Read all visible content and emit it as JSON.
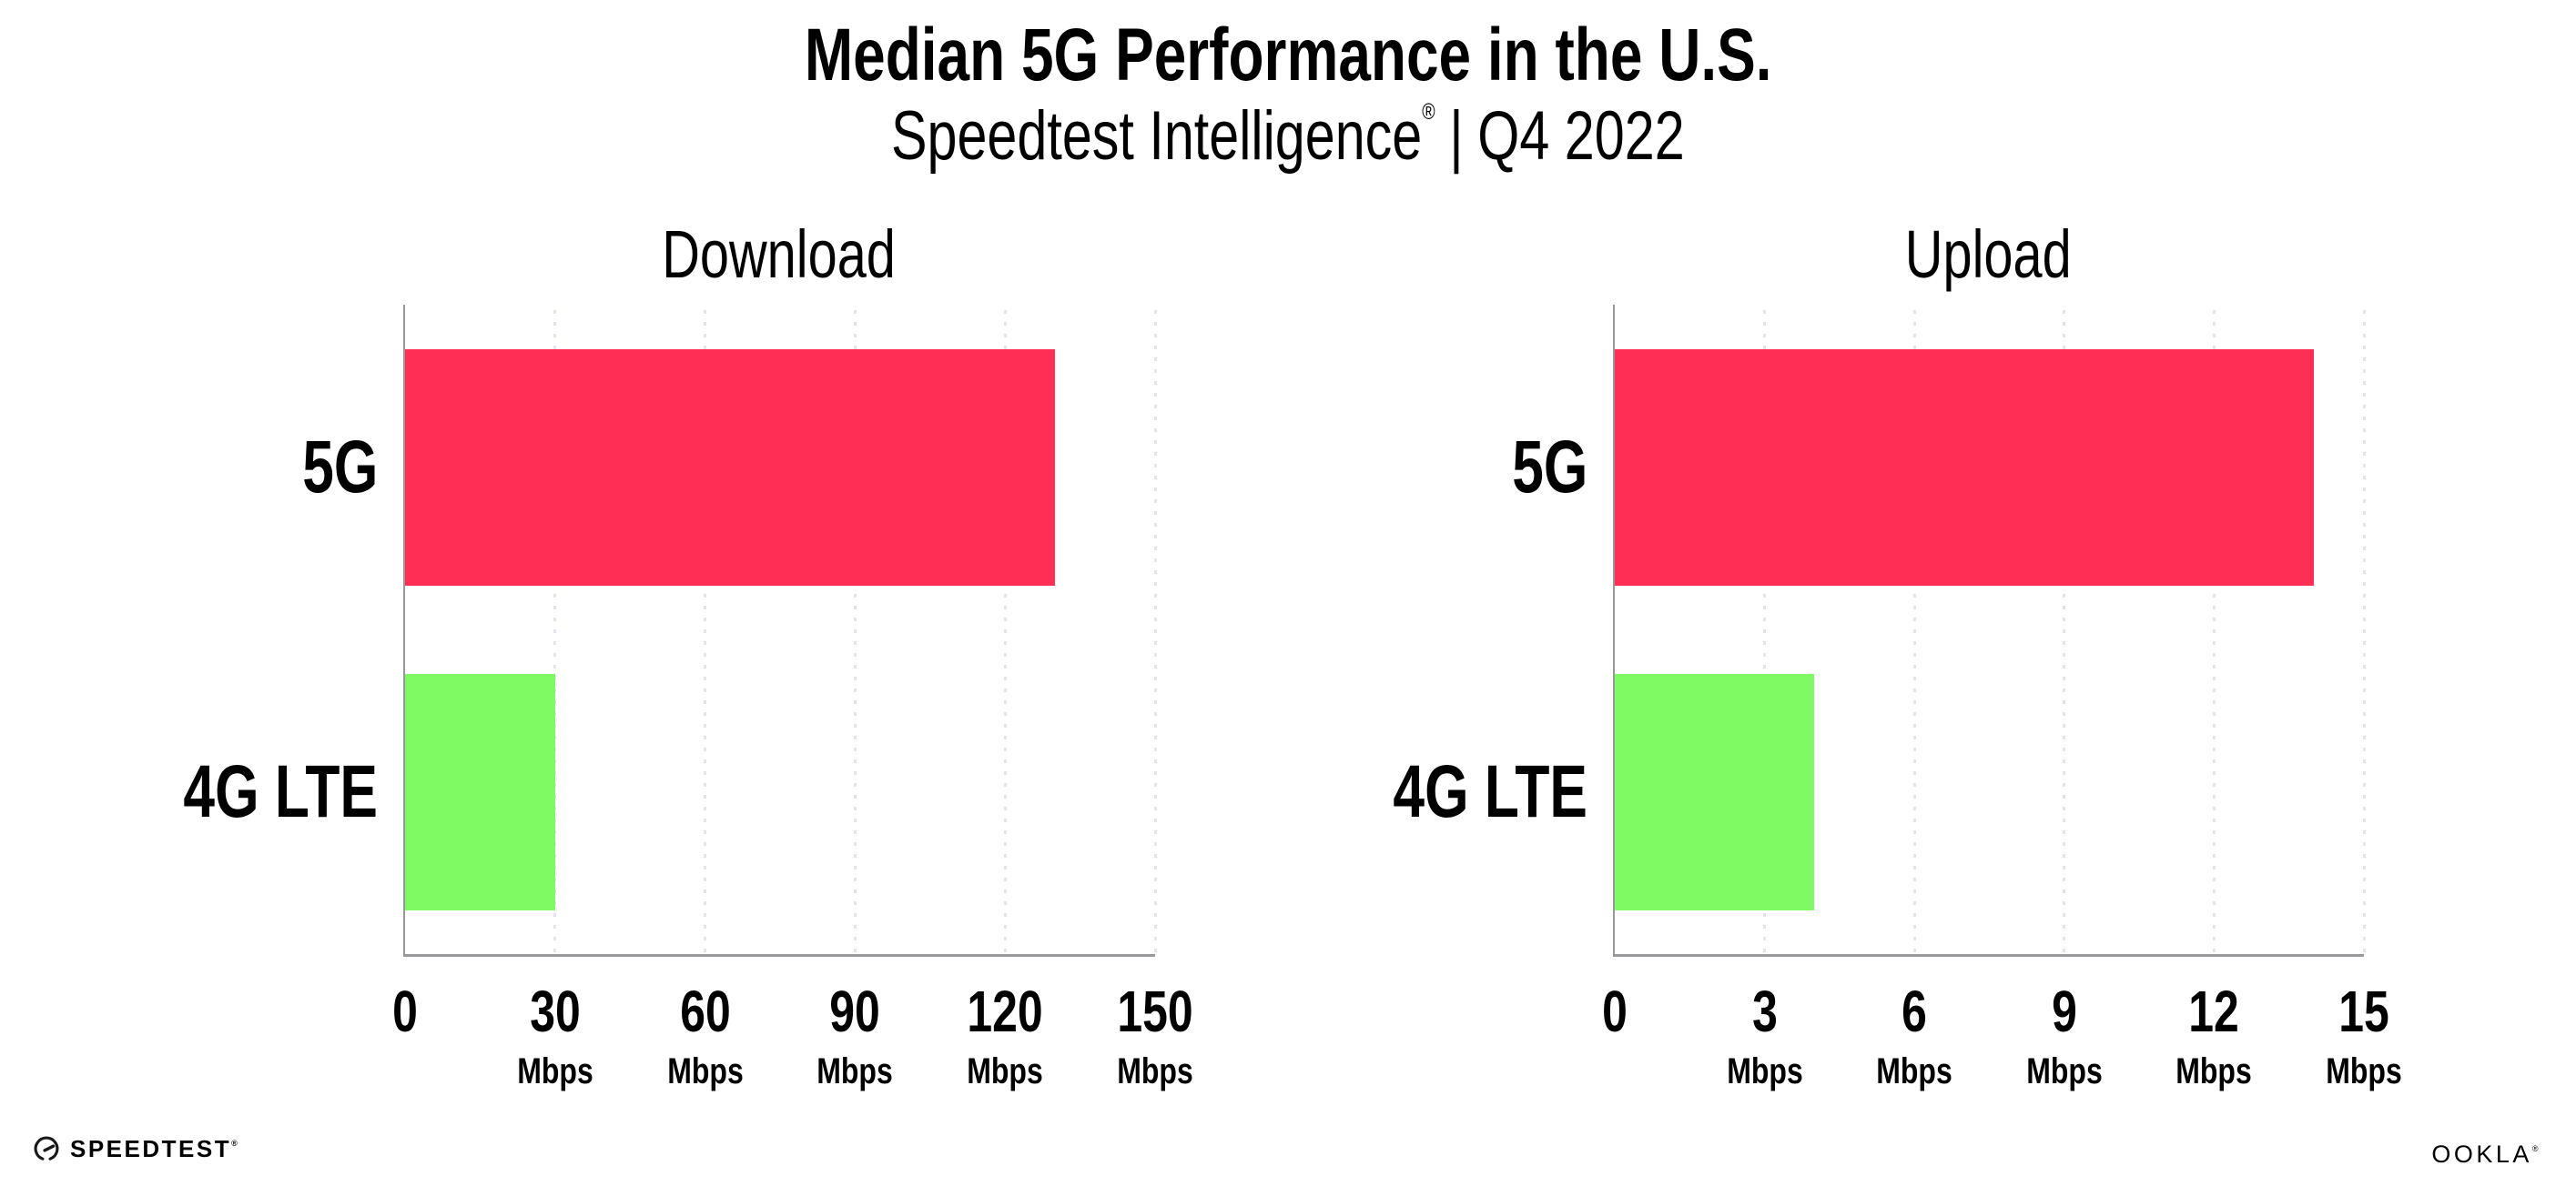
{
  "header": {
    "title": "Median 5G Performance in the U.S.",
    "subtitle": {
      "brand": "Speedtest Intelligence",
      "registered_mark": "®",
      "separator": "|",
      "period": "Q4 2022"
    }
  },
  "chart_data": [
    {
      "type": "bar",
      "orientation": "horizontal",
      "title": "Download",
      "categories": [
        "5G",
        "4G LTE"
      ],
      "values": [
        130,
        30
      ],
      "unit": "Mbps",
      "xlim": [
        0,
        150
      ],
      "xticks": [
        0,
        30,
        60,
        90,
        120,
        150
      ],
      "xtick_unit_label": "Mbps",
      "bar_colors": [
        "#fe2e55",
        "#7efb63"
      ],
      "grid": "dotted-vertical",
      "legend": "none"
    },
    {
      "type": "bar",
      "orientation": "horizontal",
      "title": "Upload",
      "categories": [
        "5G",
        "4G LTE"
      ],
      "values": [
        14,
        4
      ],
      "unit": "Mbps",
      "xlim": [
        0,
        15
      ],
      "xticks": [
        0,
        3,
        6,
        9,
        12,
        15
      ],
      "xtick_unit_label": "Mbps",
      "bar_colors": [
        "#fe2e55",
        "#7efb63"
      ],
      "grid": "dotted-vertical",
      "legend": "none"
    }
  ],
  "footer": {
    "speedtest_label": "SPEEDTEST",
    "speedtest_registered_mark": "®",
    "ookla_label": "OOKLA",
    "ookla_registered_mark": "®"
  },
  "colors": {
    "bar_5g": "#fe2e55",
    "bar_4g_lte": "#7efb63",
    "gridline": "#e3e3ed",
    "axis": "#97979d",
    "text": "#000000",
    "background": "#ffffff"
  }
}
